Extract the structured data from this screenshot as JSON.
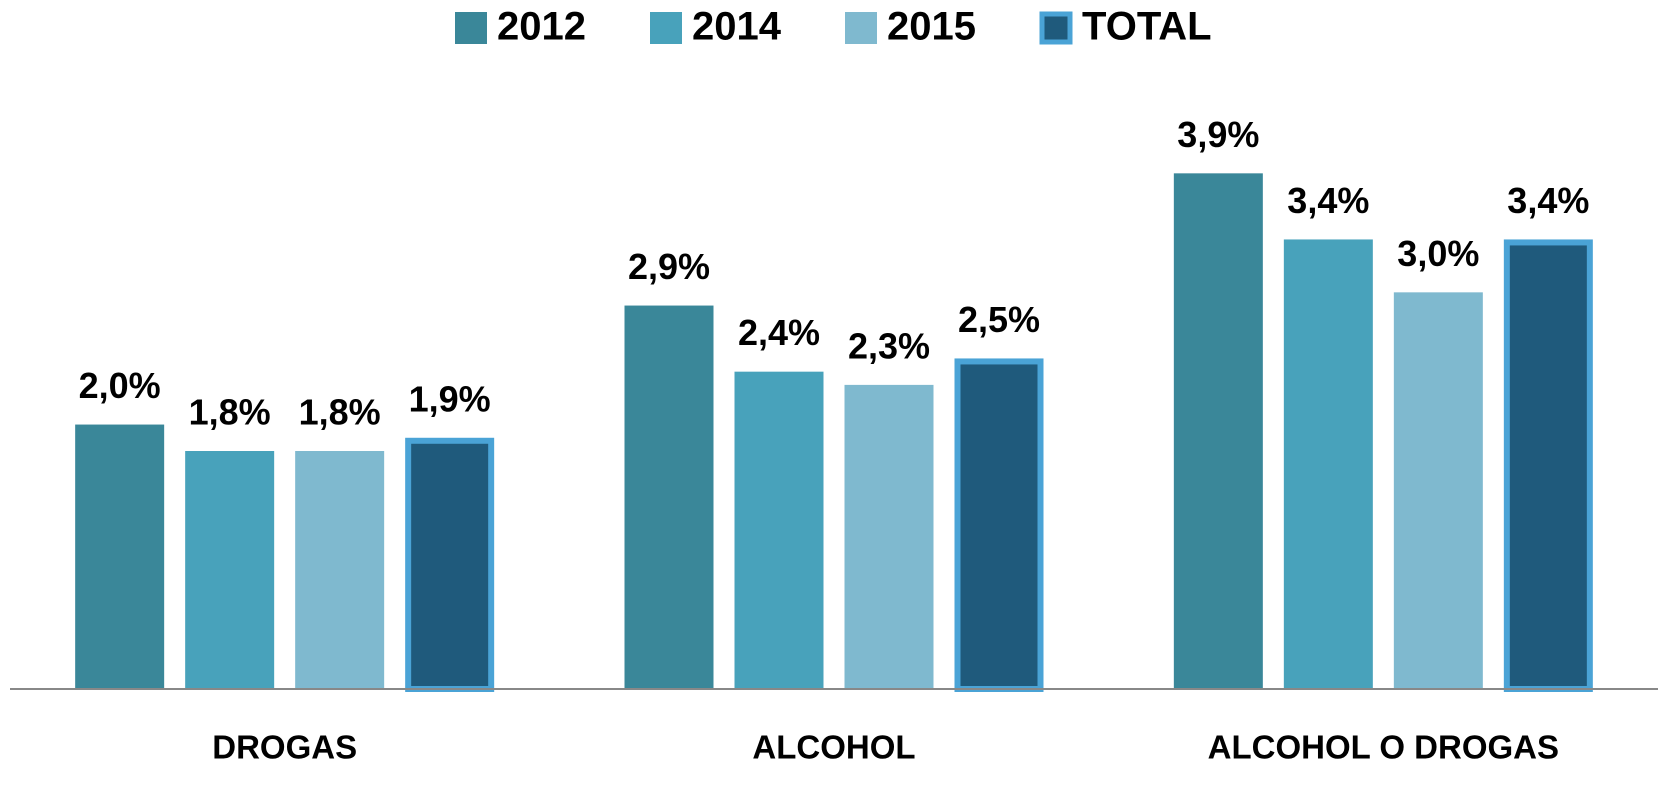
{
  "chart_data": {
    "type": "bar",
    "categories": [
      "DROGAS",
      "ALCOHOL",
      "ALCOHOL O DROGAS"
    ],
    "series": [
      {
        "name": "2012",
        "color": "#3a8799",
        "values": [
          2.0,
          2.9,
          3.9
        ],
        "value_labels": [
          "2,0%",
          "2,9%",
          "3,9%"
        ]
      },
      {
        "name": "2014",
        "color": "#48a2bb",
        "values": [
          1.8,
          2.4,
          3.4
        ],
        "value_labels": [
          "1,8%",
          "2,4%",
          "3,4%"
        ]
      },
      {
        "name": "2015",
        "color": "#7fb9cf",
        "values": [
          1.8,
          2.3,
          3.0
        ],
        "value_labels": [
          "1,8%",
          "2,3%",
          "3,0%"
        ]
      },
      {
        "name": "TOTAL",
        "color": "#1f5a7c",
        "edgecolor": "#4aa3d6",
        "values": [
          1.9,
          2.5,
          3.4
        ],
        "value_labels": [
          "1,9%",
          "2,5%",
          "3,4%"
        ]
      }
    ],
    "ylim": [
      0,
      4.5
    ],
    "legend": "top"
  }
}
